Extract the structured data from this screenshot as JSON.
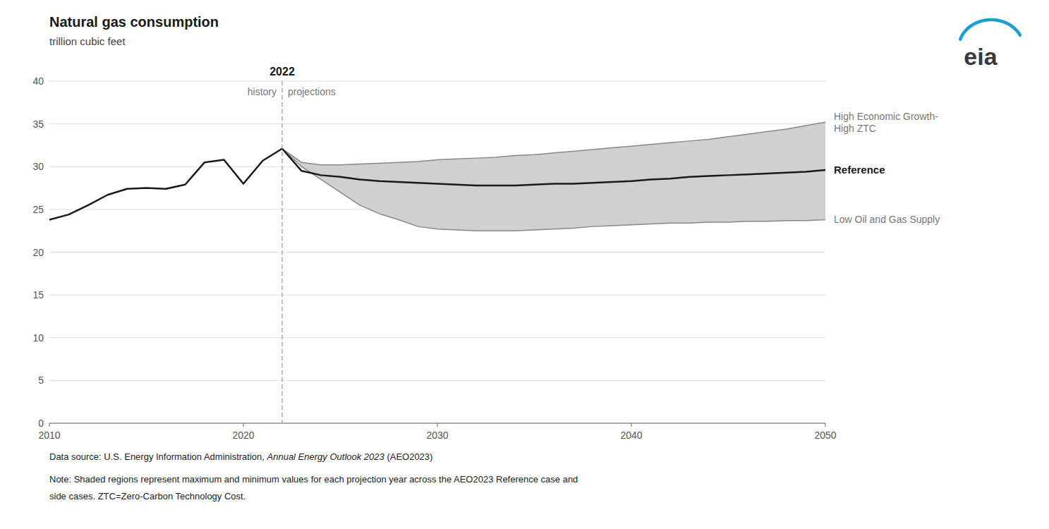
{
  "chart_data": {
    "type": "line",
    "title": "Natural gas consumption",
    "subtitle": "trillion cubic feet",
    "xlim": [
      2010,
      2050
    ],
    "ylim": [
      0,
      40
    ],
    "xticks": [
      2010,
      2020,
      2030,
      2040,
      2050
    ],
    "yticks": [
      0,
      5,
      10,
      15,
      20,
      25,
      30,
      35,
      40
    ],
    "grid": "y",
    "band": {
      "color": "#d0d0d0"
    },
    "divider": {
      "x": 2022,
      "label": "2022"
    },
    "annotations": [
      {
        "text": "history"
      },
      {
        "text": "projections"
      }
    ],
    "series": [
      {
        "name": "High Economic Growth-\nHigh ZTC",
        "color": "#888888",
        "x": [
          2022,
          2023,
          2024,
          2025,
          2026,
          2027,
          2028,
          2029,
          2030,
          2031,
          2032,
          2033,
          2034,
          2035,
          2036,
          2037,
          2038,
          2039,
          2040,
          2041,
          2042,
          2043,
          2044,
          2045,
          2046,
          2047,
          2048,
          2049,
          2050
        ],
        "values": [
          32.1,
          30.5,
          30.2,
          30.2,
          30.3,
          30.4,
          30.5,
          30.6,
          30.8,
          30.9,
          31.0,
          31.1,
          31.3,
          31.4,
          31.6,
          31.8,
          32.0,
          32.2,
          32.4,
          32.6,
          32.8,
          33.0,
          33.2,
          33.5,
          33.8,
          34.1,
          34.4,
          34.8,
          35.2
        ]
      },
      {
        "name": "Low Oil and Gas Supply",
        "color": "#888888",
        "x": [
          2022,
          2023,
          2024,
          2025,
          2026,
          2027,
          2028,
          2029,
          2030,
          2031,
          2032,
          2033,
          2034,
          2035,
          2036,
          2037,
          2038,
          2039,
          2040,
          2041,
          2042,
          2043,
          2044,
          2045,
          2046,
          2047,
          2048,
          2049,
          2050
        ],
        "values": [
          32.1,
          30.0,
          28.5,
          27.0,
          25.5,
          24.5,
          23.8,
          23.0,
          22.7,
          22.6,
          22.5,
          22.5,
          22.5,
          22.6,
          22.7,
          22.8,
          23.0,
          23.1,
          23.2,
          23.3,
          23.4,
          23.4,
          23.5,
          23.5,
          23.6,
          23.6,
          23.7,
          23.7,
          23.8
        ]
      },
      {
        "name": "Reference",
        "color": "#1a1a1a",
        "x": [
          2022,
          2023,
          2024,
          2025,
          2026,
          2027,
          2028,
          2029,
          2030,
          2031,
          2032,
          2033,
          2034,
          2035,
          2036,
          2037,
          2038,
          2039,
          2040,
          2041,
          2042,
          2043,
          2044,
          2045,
          2046,
          2047,
          2048,
          2049,
          2050
        ],
        "values": [
          32.1,
          29.5,
          29.0,
          28.8,
          28.5,
          28.3,
          28.2,
          28.1,
          28.0,
          27.9,
          27.8,
          27.8,
          27.8,
          27.9,
          28.0,
          28.0,
          28.1,
          28.2,
          28.3,
          28.5,
          28.6,
          28.8,
          28.9,
          29.0,
          29.1,
          29.2,
          29.3,
          29.4,
          29.6
        ]
      },
      {
        "color": "#1a1a1a",
        "x": [
          2010,
          2011,
          2012,
          2013,
          2014,
          2015,
          2016,
          2017,
          2018,
          2019,
          2020,
          2021,
          2022
        ],
        "values": [
          23.8,
          24.4,
          25.5,
          26.7,
          27.4,
          27.5,
          27.4,
          27.9,
          30.5,
          30.8,
          28.0,
          30.7,
          32.1
        ]
      }
    ],
    "logo": {
      "text": "eia",
      "color": "#3a3a3a",
      "arc_color": "#1a9fd4"
    },
    "source": [
      "Data source: U.S. Energy Information Administration, ",
      "Annual Energy Outlook 2023",
      " (AEO2023)"
    ],
    "notes": [
      "Note: Shaded regions represent maximum and minimum values for each projection year across the AEO2023 Reference case and",
      "side cases. ZTC=Zero-Carbon Technology Cost."
    ]
  }
}
